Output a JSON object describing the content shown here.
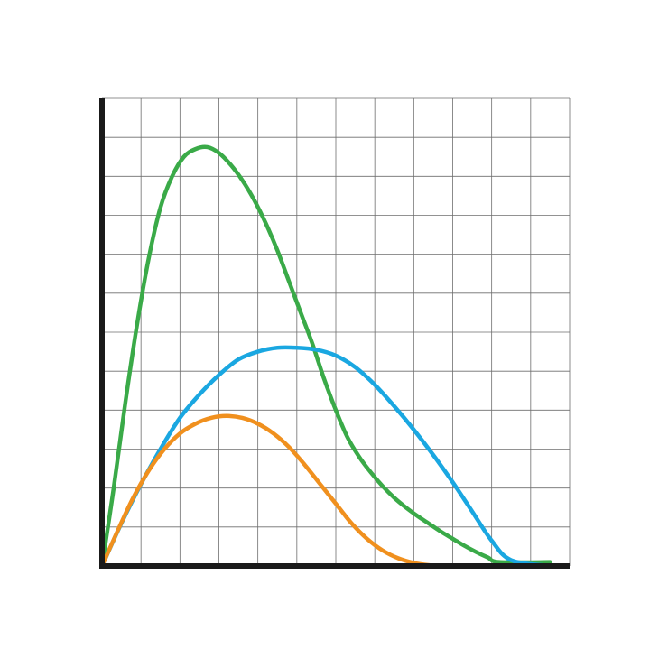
{
  "chart_data": {
    "type": "line",
    "title": "",
    "xlabel": "",
    "ylabel": "",
    "xlim": [
      0,
      12
    ],
    "ylim": [
      0,
      12
    ],
    "grid": true,
    "axes_color": "#1a1a1a",
    "grid_color": "#6e6e6e",
    "series": [
      {
        "color": "#3aaa48",
        "points": [
          [
            0,
            0
          ],
          [
            0.3,
            2.0
          ],
          [
            0.6,
            4.2
          ],
          [
            0.9,
            6.2
          ],
          [
            1.2,
            7.9
          ],
          [
            1.5,
            9.2
          ],
          [
            1.8,
            10.0
          ],
          [
            2.1,
            10.5
          ],
          [
            2.4,
            10.7
          ],
          [
            2.7,
            10.75
          ],
          [
            3.0,
            10.6
          ],
          [
            3.3,
            10.3
          ],
          [
            3.6,
            9.9
          ],
          [
            3.9,
            9.4
          ],
          [
            4.2,
            8.8
          ],
          [
            4.5,
            8.1
          ],
          [
            4.8,
            7.3
          ],
          [
            5.1,
            6.5
          ],
          [
            5.4,
            5.7
          ],
          [
            5.7,
            4.8
          ],
          [
            6.0,
            4.0
          ],
          [
            6.3,
            3.3
          ],
          [
            6.6,
            2.8
          ],
          [
            6.9,
            2.4
          ],
          [
            7.2,
            2.05
          ],
          [
            7.5,
            1.75
          ],
          [
            7.8,
            1.5
          ],
          [
            8.1,
            1.28
          ],
          [
            8.4,
            1.08
          ],
          [
            8.7,
            0.88
          ],
          [
            9.0,
            0.7
          ],
          [
            9.3,
            0.52
          ],
          [
            9.6,
            0.36
          ],
          [
            9.9,
            0.22
          ],
          [
            10.2,
            0.1
          ],
          [
            11.5,
            0.1
          ]
        ]
      },
      {
        "color": "#1aa7e1",
        "points": [
          [
            0,
            0
          ],
          [
            0.5,
            1.1
          ],
          [
            1.0,
            2.1
          ],
          [
            1.5,
            3.0
          ],
          [
            2.0,
            3.8
          ],
          [
            2.5,
            4.4
          ],
          [
            3.0,
            4.9
          ],
          [
            3.5,
            5.3
          ],
          [
            4.0,
            5.5
          ],
          [
            4.5,
            5.6
          ],
          [
            5.0,
            5.6
          ],
          [
            5.5,
            5.55
          ],
          [
            6.0,
            5.4
          ],
          [
            6.5,
            5.1
          ],
          [
            7.0,
            4.65
          ],
          [
            7.5,
            4.1
          ],
          [
            8.0,
            3.5
          ],
          [
            8.5,
            2.85
          ],
          [
            9.0,
            2.15
          ],
          [
            9.5,
            1.4
          ],
          [
            10.0,
            0.65
          ],
          [
            10.5,
            0.15
          ],
          [
            11.5,
            0.0
          ]
        ]
      },
      {
        "color": "#f0901e",
        "points": [
          [
            0,
            0
          ],
          [
            0.4,
            0.9
          ],
          [
            0.8,
            1.75
          ],
          [
            1.2,
            2.45
          ],
          [
            1.6,
            3.0
          ],
          [
            2.0,
            3.4
          ],
          [
            2.4,
            3.65
          ],
          [
            2.8,
            3.8
          ],
          [
            3.2,
            3.85
          ],
          [
            3.6,
            3.8
          ],
          [
            4.0,
            3.65
          ],
          [
            4.4,
            3.4
          ],
          [
            4.8,
            3.05
          ],
          [
            5.2,
            2.6
          ],
          [
            5.6,
            2.1
          ],
          [
            6.0,
            1.6
          ],
          [
            6.4,
            1.1
          ],
          [
            6.8,
            0.7
          ],
          [
            7.2,
            0.4
          ],
          [
            7.6,
            0.2
          ],
          [
            8.0,
            0.08
          ],
          [
            8.4,
            0.02
          ],
          [
            8.8,
            0.0
          ],
          [
            11.5,
            0.0
          ]
        ]
      }
    ]
  }
}
